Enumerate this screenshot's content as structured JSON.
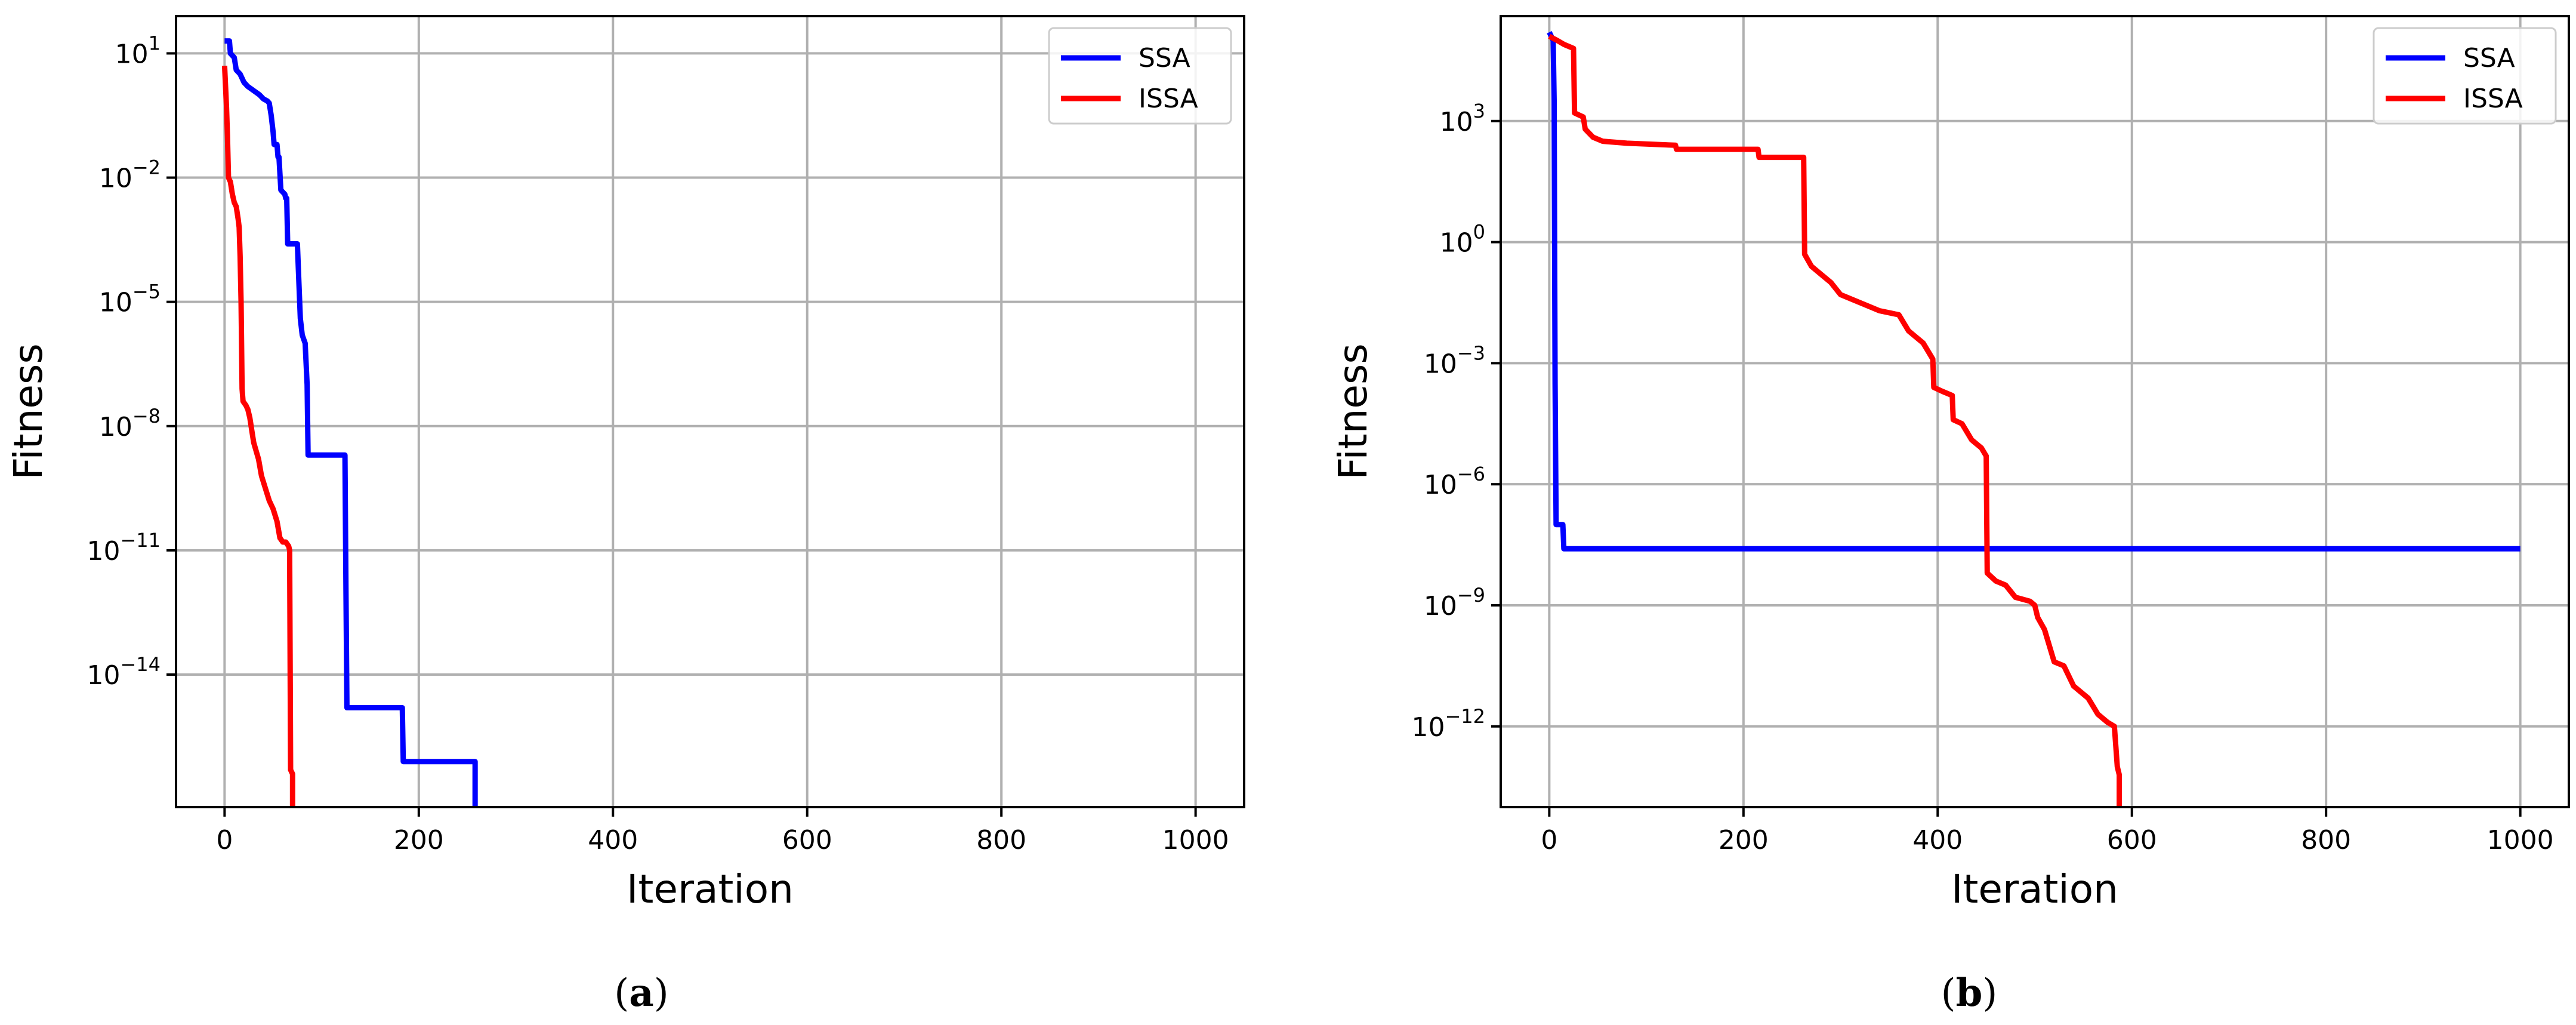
{
  "chart_data": [
    {
      "type": "line",
      "caption": "a",
      "xlabel": "Iteration",
      "ylabel": "Fitness",
      "yscale": "log",
      "xlim": [
        -50,
        1050
      ],
      "ylim_exponent": [
        -17.2,
        1.9
      ],
      "xticks": [
        0,
        200,
        400,
        600,
        800,
        1000
      ],
      "yticks": [
        {
          "exp": 1,
          "label": "1",
          "base": "10"
        },
        {
          "exp": -2,
          "label": "−2",
          "base": "10"
        },
        {
          "exp": -5,
          "label": "−5",
          "base": "10"
        },
        {
          "exp": -8,
          "label": "−8",
          "base": "10"
        },
        {
          "exp": -11,
          "label": "−11",
          "base": "10"
        },
        {
          "exp": -14,
          "label": "−14",
          "base": "10"
        }
      ],
      "grid": true,
      "legend_position": "top-right",
      "series": [
        {
          "name": "SSA",
          "color": "#0000ff",
          "points": [
            [
              0,
              1.3
            ],
            [
              5,
              1.3
            ],
            [
              6,
              1.0
            ],
            [
              10,
              0.9
            ],
            [
              12,
              0.6
            ],
            [
              16,
              0.5
            ],
            [
              20,
              0.3
            ],
            [
              24,
              0.2
            ],
            [
              30,
              0.1
            ],
            [
              36,
              0.0
            ],
            [
              40,
              -0.1
            ],
            [
              44,
              -0.15
            ],
            [
              46,
              -0.2
            ],
            [
              48,
              -0.5
            ],
            [
              50,
              -0.9
            ],
            [
              51,
              -1.2
            ],
            [
              54,
              -1.2
            ],
            [
              55,
              -1.5
            ],
            [
              56,
              -1.5
            ],
            [
              58,
              -2.3
            ],
            [
              62,
              -2.4
            ],
            [
              63,
              -2.5
            ],
            [
              64,
              -2.5
            ],
            [
              65,
              -3.6
            ],
            [
              75,
              -3.6
            ],
            [
              76,
              -4.2
            ],
            [
              78,
              -5.4
            ],
            [
              80,
              -5.8
            ],
            [
              83,
              -6.0
            ],
            [
              85,
              -7.0
            ],
            [
              86,
              -8.7
            ],
            [
              124,
              -8.7
            ],
            [
              125,
              -12.0
            ],
            [
              126,
              -14.8
            ],
            [
              183,
              -14.8
            ],
            [
              184,
              -16.1
            ],
            [
              258,
              -16.1
            ],
            [
              258,
              -17.2
            ]
          ]
        },
        {
          "name": "ISSA",
          "color": "#ff0000",
          "points": [
            [
              0,
              0.7
            ],
            [
              2,
              -0.3
            ],
            [
              3,
              -1.0
            ],
            [
              4,
              -2.0
            ],
            [
              6,
              -2.1
            ],
            [
              8,
              -2.4
            ],
            [
              10,
              -2.6
            ],
            [
              12,
              -2.7
            ],
            [
              14,
              -3.0
            ],
            [
              15,
              -3.2
            ],
            [
              16,
              -3.9
            ],
            [
              17,
              -5.0
            ],
            [
              18,
              -7.1
            ],
            [
              19,
              -7.4
            ],
            [
              22,
              -7.5
            ],
            [
              24,
              -7.6
            ],
            [
              26,
              -7.8
            ],
            [
              28,
              -8.1
            ],
            [
              30,
              -8.4
            ],
            [
              35,
              -8.8
            ],
            [
              38,
              -9.2
            ],
            [
              42,
              -9.5
            ],
            [
              46,
              -9.8
            ],
            [
              50,
              -10.0
            ],
            [
              54,
              -10.3
            ],
            [
              57,
              -10.7
            ],
            [
              60,
              -10.8
            ],
            [
              63,
              -10.8
            ],
            [
              66,
              -10.9
            ],
            [
              67,
              -11.0
            ],
            [
              68,
              -16.3
            ],
            [
              70,
              -16.4
            ],
            [
              70,
              -17.2
            ]
          ]
        }
      ]
    },
    {
      "type": "line",
      "caption": "b",
      "xlabel": "Iteration",
      "ylabel": "Fitness",
      "yscale": "log",
      "xlim": [
        -50,
        1050
      ],
      "ylim_exponent": [
        -14.0,
        5.6
      ],
      "xticks": [
        0,
        200,
        400,
        600,
        800,
        1000
      ],
      "yticks": [
        {
          "exp": 3,
          "label": "3",
          "base": "10"
        },
        {
          "exp": 0,
          "label": "0",
          "base": "10"
        },
        {
          "exp": -3,
          "label": "−3",
          "base": "10"
        },
        {
          "exp": -6,
          "label": "−6",
          "base": "10"
        },
        {
          "exp": -9,
          "label": "−9",
          "base": "10"
        },
        {
          "exp": -12,
          "label": "−12",
          "base": "10"
        }
      ],
      "grid": true,
      "legend_position": "top-right",
      "series": [
        {
          "name": "SSA",
          "color": "#0000ff",
          "points": [
            [
              0,
              5.2
            ],
            [
              4,
              5.0
            ],
            [
              5,
              3.5
            ],
            [
              6,
              -3.5
            ],
            [
              7,
              -7.0
            ],
            [
              14,
              -7.0
            ],
            [
              15,
              -7.6
            ],
            [
              1000,
              -7.6
            ]
          ]
        },
        {
          "name": "ISSA",
          "color": "#ff0000",
          "points": [
            [
              0,
              5.1
            ],
            [
              8,
              5.0
            ],
            [
              15,
              4.9
            ],
            [
              25,
              4.8
            ],
            [
              26,
              3.2
            ],
            [
              35,
              3.1
            ],
            [
              37,
              2.8
            ],
            [
              45,
              2.6
            ],
            [
              55,
              2.5
            ],
            [
              80,
              2.45
            ],
            [
              130,
              2.4
            ],
            [
              131,
              2.3
            ],
            [
              215,
              2.3
            ],
            [
              216,
              2.1
            ],
            [
              262,
              2.1
            ],
            [
              263,
              -0.3
            ],
            [
              270,
              -0.6
            ],
            [
              280,
              -0.8
            ],
            [
              290,
              -1.0
            ],
            [
              300,
              -1.3
            ],
            [
              320,
              -1.5
            ],
            [
              340,
              -1.7
            ],
            [
              360,
              -1.8
            ],
            [
              370,
              -2.2
            ],
            [
              385,
              -2.5
            ],
            [
              395,
              -2.9
            ],
            [
              396,
              -3.6
            ],
            [
              405,
              -3.7
            ],
            [
              415,
              -3.8
            ],
            [
              416,
              -4.4
            ],
            [
              425,
              -4.5
            ],
            [
              435,
              -4.9
            ],
            [
              445,
              -5.1
            ],
            [
              450,
              -5.3
            ],
            [
              451,
              -8.2
            ],
            [
              460,
              -8.4
            ],
            [
              470,
              -8.5
            ],
            [
              480,
              -8.8
            ],
            [
              495,
              -8.9
            ],
            [
              500,
              -9.0
            ],
            [
              503,
              -9.3
            ],
            [
              510,
              -9.6
            ],
            [
              520,
              -10.4
            ],
            [
              530,
              -10.5
            ],
            [
              540,
              -11.0
            ],
            [
              555,
              -11.3
            ],
            [
              565,
              -11.7
            ],
            [
              575,
              -11.9
            ],
            [
              582,
              -12.0
            ],
            [
              585,
              -13.0
            ],
            [
              587,
              -13.2
            ],
            [
              587,
              -14.0
            ]
          ]
        }
      ]
    }
  ]
}
